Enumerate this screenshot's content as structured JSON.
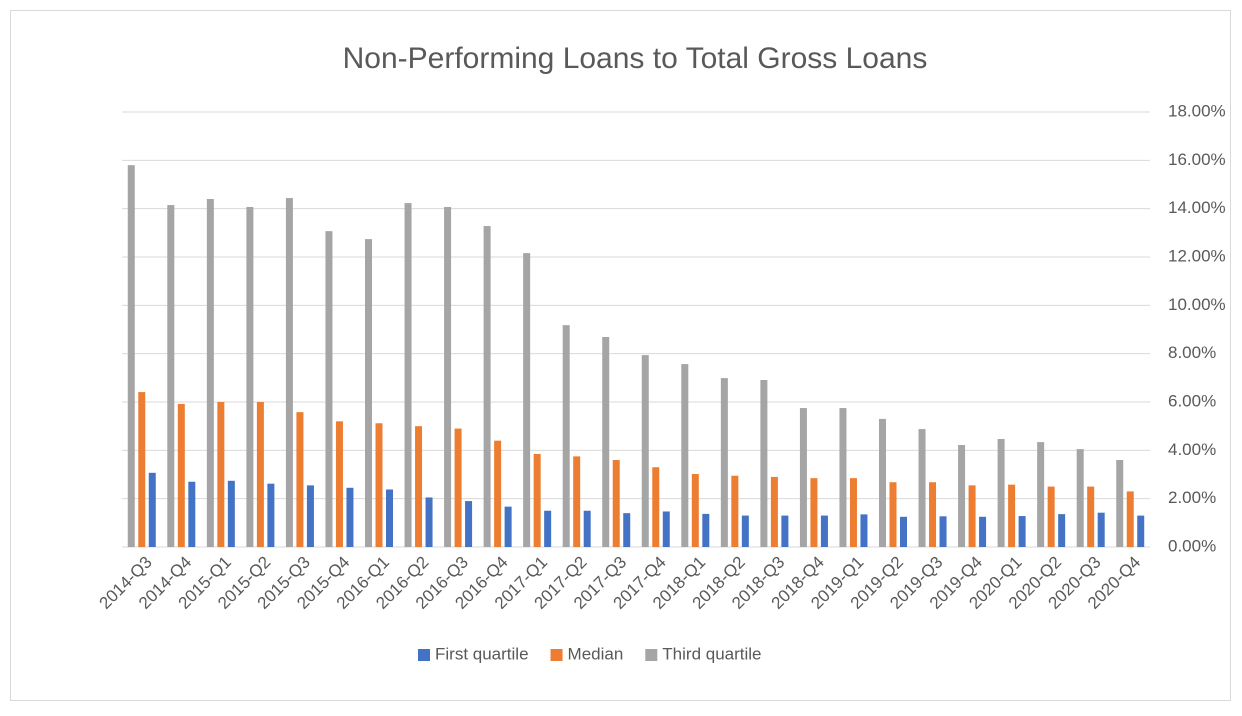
{
  "chart_data": {
    "type": "bar",
    "title": "Non-Performing Loans to Total Gross Loans",
    "categories": [
      "2014-Q3",
      "2014-Q4",
      "2015-Q1",
      "2015-Q2",
      "2015-Q3",
      "2015-Q4",
      "2016-Q1",
      "2016-Q2",
      "2016-Q3",
      "2016-Q4",
      "2017-Q1",
      "2017-Q2",
      "2017-Q3",
      "2017-Q4",
      "2018-Q1",
      "2018-Q2",
      "2018-Q3",
      "2018-Q4",
      "2019-Q1",
      "2019-Q2",
      "2019-Q3",
      "2019-Q4",
      "2020-Q1",
      "2020-Q2",
      "2020-Q3",
      "2020-Q4"
    ],
    "series": [
      {
        "name": "First quartile",
        "color": "#4472c4",
        "values": [
          3.07,
          2.7,
          2.74,
          2.62,
          2.55,
          2.45,
          2.38,
          2.05,
          1.9,
          1.67,
          1.5,
          1.5,
          1.4,
          1.47,
          1.37,
          1.3,
          1.3,
          1.3,
          1.35,
          1.25,
          1.27,
          1.25,
          1.28,
          1.36,
          1.42,
          1.3
        ]
      },
      {
        "name": "Median",
        "color": "#ed7d31",
        "values": [
          6.41,
          5.92,
          6.0,
          6.0,
          5.58,
          5.2,
          5.12,
          5.0,
          4.9,
          4.4,
          3.85,
          3.75,
          3.6,
          3.3,
          3.02,
          2.95,
          2.9,
          2.85,
          2.85,
          2.68,
          2.68,
          2.55,
          2.58,
          2.5,
          2.5,
          2.3
        ]
      },
      {
        "name": "Third quartile",
        "color": "#a5a5a5",
        "values": [
          15.8,
          14.15,
          14.4,
          14.07,
          14.44,
          13.07,
          12.74,
          14.23,
          14.07,
          13.28,
          12.16,
          9.18,
          8.69,
          7.94,
          7.57,
          6.99,
          6.91,
          5.75,
          5.75,
          5.3,
          4.88,
          4.22,
          4.47,
          4.34,
          4.05,
          3.6
        ]
      }
    ],
    "ylim": [
      0,
      18
    ],
    "yticks": [
      {
        "value": 0,
        "label": "0.00%"
      },
      {
        "value": 2,
        "label": "2.00%"
      },
      {
        "value": 4,
        "label": "4.00%"
      },
      {
        "value": 6,
        "label": "6.00%"
      },
      {
        "value": 8,
        "label": "8.00%"
      },
      {
        "value": 10,
        "label": "10.00%"
      },
      {
        "value": 12,
        "label": "12.00%"
      },
      {
        "value": 14,
        "label": "14.00%"
      },
      {
        "value": 16,
        "label": "16.00%"
      },
      {
        "value": 18,
        "label": "18.00%"
      }
    ],
    "grid": true,
    "legend": "bottom"
  }
}
